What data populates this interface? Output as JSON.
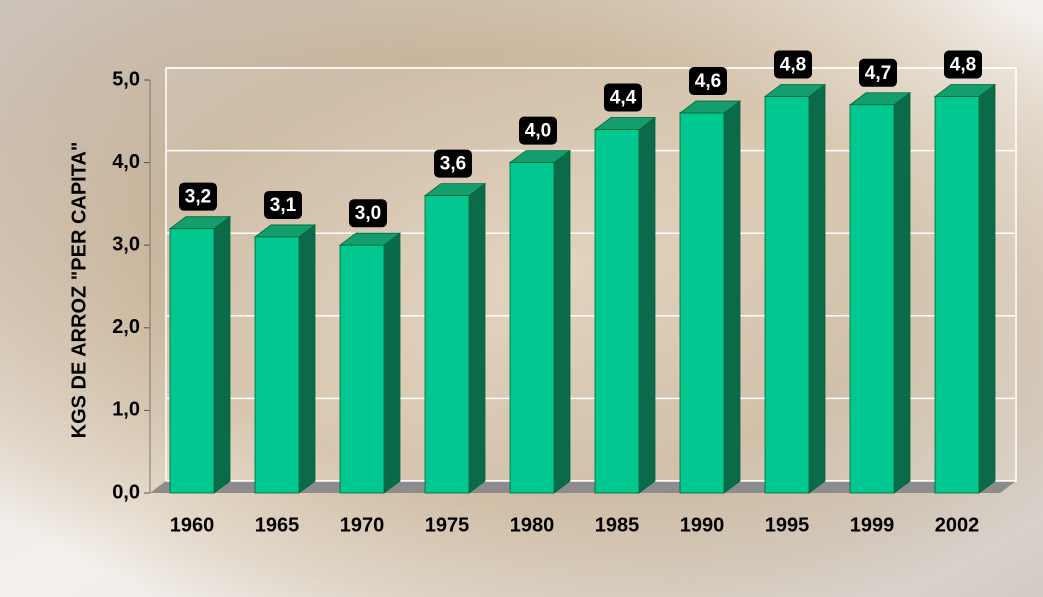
{
  "chart_data": {
    "type": "bar3d",
    "y_label": "KGS DE ARROZ \"PER CAPITA\"",
    "categories": [
      "1960",
      "1965",
      "1970",
      "1975",
      "1980",
      "1985",
      "1990",
      "1995",
      "1999",
      "2002"
    ],
    "values": [
      3.2,
      3.1,
      3.0,
      3.6,
      4.0,
      4.4,
      4.6,
      4.8,
      4.7,
      4.8
    ],
    "value_labels": [
      "3,2",
      "3,1",
      "3,0",
      "3,6",
      "4,0",
      "4,4",
      "4,6",
      "4,8",
      "4,7",
      "4,8"
    ],
    "color": "#00c890",
    "ylim": [
      0,
      5
    ],
    "yticks": [
      {
        "value": 0,
        "label": "0,0"
      },
      {
        "value": 1,
        "label": "1,0"
      },
      {
        "value": 2,
        "label": "2,0"
      },
      {
        "value": 3,
        "label": "3,0"
      },
      {
        "value": 4,
        "label": "4,0"
      },
      {
        "value": 5,
        "label": "5,0"
      }
    ],
    "grid": true
  }
}
